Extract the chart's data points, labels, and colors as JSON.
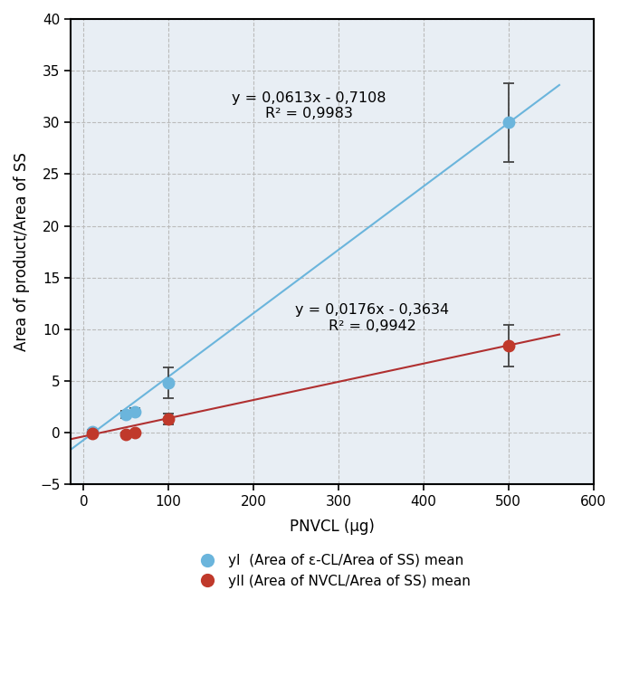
{
  "blue_x": [
    10,
    50,
    60,
    100,
    500
  ],
  "blue_y": [
    0.1,
    1.75,
    2.0,
    4.8,
    30.0
  ],
  "blue_yerr": [
    0.15,
    0.35,
    0.35,
    1.5,
    3.8
  ],
  "red_x": [
    10,
    50,
    60,
    100,
    500
  ],
  "red_y": [
    -0.1,
    -0.15,
    0.0,
    1.3,
    8.4
  ],
  "red_yerr": [
    0.1,
    0.15,
    0.15,
    0.55,
    2.0
  ],
  "blue_slope": 0.0613,
  "blue_intercept": -0.7108,
  "red_slope": 0.0176,
  "red_intercept": -0.3634,
  "blue_color": "#6BB5DC",
  "red_color": "#C0392B",
  "blue_line_color": "#6BB5DC",
  "red_line_color": "#B03030",
  "error_color": "#444444",
  "xlabel": "PNVCL (µg)",
  "ylabel": "Area of product/Area of SS",
  "xlim": [
    -15,
    580
  ],
  "ylim": [
    -5,
    40
  ],
  "xticks": [
    0,
    100,
    200,
    300,
    400,
    500,
    600
  ],
  "yticks": [
    -5,
    0,
    5,
    10,
    15,
    20,
    25,
    30,
    35,
    40
  ],
  "blue_eq": "y = 0,0613x - 0,7108",
  "blue_r2_text": "R² = 0,9983",
  "red_eq": "y = 0,0176x - 0,3634",
  "red_r2_text": "R² = 0,9942",
  "legend1": "yI  (Area of ε-CL/Area of SS) mean",
  "legend2": "yII (Area of NVCL/Area of SS) mean",
  "grid_color": "#BBBBBB",
  "plot_bg_color": "#E8EEF4",
  "fig_bg_color": "#FFFFFF",
  "eq_blue_x": 265,
  "eq_blue_y": 33,
  "eq_red_x": 340,
  "eq_red_y": 12.5
}
